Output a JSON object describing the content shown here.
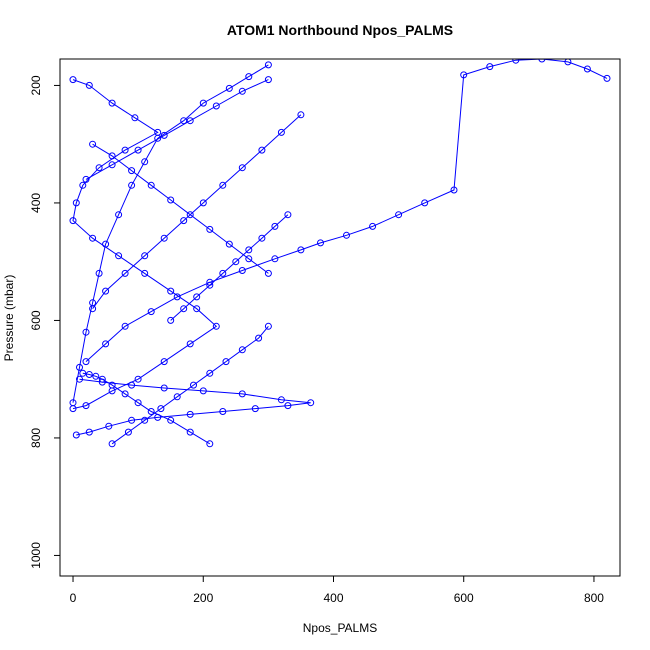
{
  "chart_data": {
    "type": "line",
    "title": "ATOM1 Northbound Npos_PALMS",
    "xlabel": "Npos_PALMS",
    "ylabel": "Pressure (mbar)",
    "xlim": [
      -20,
      840
    ],
    "ylim": [
      1035,
      155
    ],
    "y_reversed": true,
    "x_ticks": [
      0,
      200,
      400,
      600,
      800
    ],
    "y_ticks": [
      200,
      400,
      600,
      800,
      1000
    ],
    "series_color": "#0000ff",
    "marker": "open-circle",
    "grid": false,
    "legend": "none",
    "series": [
      {
        "x": [
          0,
          25,
          60,
          95,
          130,
          80,
          40,
          15,
          5,
          0,
          30,
          70,
          110,
          150,
          190,
          220,
          180,
          140,
          100,
          60,
          20,
          0
        ],
        "y": [
          190,
          200,
          230,
          255,
          280,
          310,
          340,
          370,
          400,
          430,
          460,
          490,
          520,
          550,
          580,
          610,
          640,
          670,
          700,
          720,
          745,
          750
        ]
      },
      {
        "x": [
          300,
          270,
          240,
          200,
          170,
          130,
          110,
          90,
          70,
          50,
          40,
          30,
          20,
          10,
          0
        ],
        "y": [
          165,
          185,
          205,
          230,
          260,
          290,
          330,
          370,
          420,
          470,
          520,
          570,
          620,
          680,
          740
        ]
      },
      {
        "x": [
          820,
          790,
          760,
          720,
          680,
          640,
          600,
          585,
          540,
          500,
          460,
          420,
          380,
          350,
          310,
          260,
          210,
          160,
          120,
          80,
          50,
          20
        ],
        "y": [
          188,
          172,
          160,
          155,
          157,
          168,
          182,
          378,
          400,
          420,
          440,
          455,
          468,
          480,
          495,
          515,
          535,
          560,
          585,
          610,
          640,
          670
        ]
      },
      {
        "x": [
          10,
          45,
          90,
          140,
          200,
          260,
          320,
          365,
          330,
          280,
          230,
          180,
          130,
          90,
          55,
          25,
          5
        ],
        "y": [
          700,
          705,
          710,
          715,
          720,
          725,
          735,
          740,
          745,
          750,
          755,
          760,
          765,
          770,
          780,
          790,
          795
        ]
      },
      {
        "x": [
          210,
          180,
          150,
          120,
          100,
          80,
          60,
          45,
          35,
          25,
          15
        ],
        "y": [
          810,
          790,
          770,
          755,
          740,
          725,
          710,
          700,
          695,
          692,
          690
        ]
      },
      {
        "x": [
          350,
          320,
          290,
          260,
          230,
          200,
          170,
          140,
          110,
          80,
          50,
          30
        ],
        "y": [
          250,
          280,
          310,
          340,
          370,
          400,
          430,
          460,
          490,
          520,
          550,
          580
        ]
      },
      {
        "x": [
          150,
          170,
          190,
          210,
          230,
          250,
          270,
          290,
          310,
          330
        ],
        "y": [
          600,
          580,
          560,
          540,
          520,
          500,
          480,
          460,
          440,
          420
        ]
      },
      {
        "x": [
          60,
          85,
          110,
          135,
          160,
          185,
          210,
          235,
          260,
          285,
          300
        ],
        "y": [
          810,
          790,
          770,
          750,
          730,
          710,
          690,
          670,
          650,
          630,
          610
        ]
      },
      {
        "x": [
          30,
          60,
          90,
          120,
          150,
          180,
          210,
          240,
          270,
          300
        ],
        "y": [
          300,
          320,
          345,
          370,
          395,
          420,
          445,
          470,
          495,
          520
        ]
      },
      {
        "x": [
          300,
          260,
          220,
          180,
          140,
          100,
          60,
          20
        ],
        "y": [
          190,
          210,
          235,
          260,
          285,
          310,
          335,
          360
        ]
      }
    ]
  }
}
